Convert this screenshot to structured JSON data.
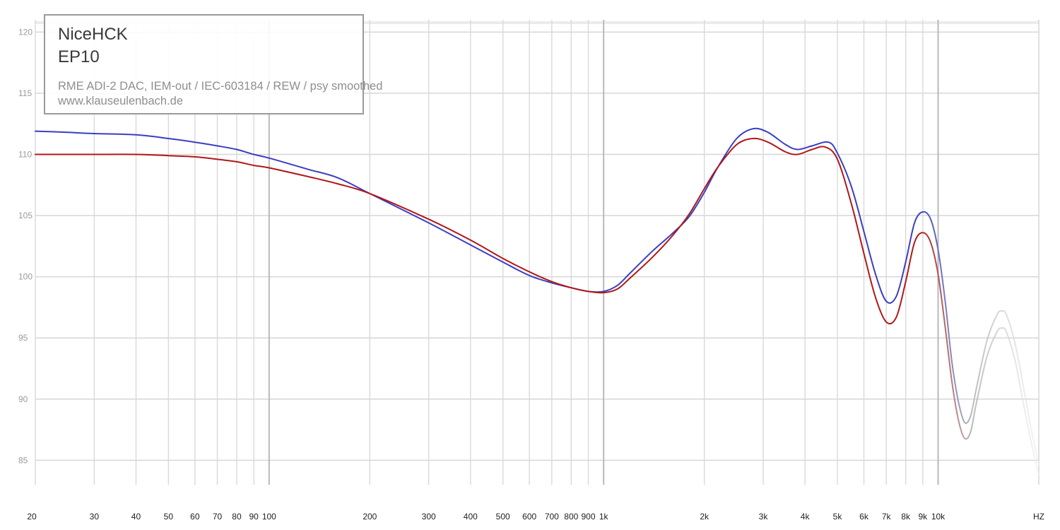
{
  "legend": {
    "brand": "NiceHCK",
    "model": "EP10",
    "setup": "RME ADI-2 DAC, IEM-out / IEC-603184 / REW / psy smoothed",
    "website": "www.klauseulenbach.de"
  },
  "chart_data": {
    "type": "line",
    "title": "",
    "xlabel": "",
    "ylabel": "",
    "x_scale": "log",
    "xlim": [
      20,
      20000
    ],
    "ylim": [
      83,
      121
    ],
    "grid": true,
    "y_ticks": [
      85,
      90,
      95,
      100,
      105,
      110,
      115,
      120
    ],
    "x_ticks": [
      {
        "value": 20,
        "label": "20"
      },
      {
        "value": 30,
        "label": "30"
      },
      {
        "value": 40,
        "label": "40"
      },
      {
        "value": 50,
        "label": "50"
      },
      {
        "value": 60,
        "label": "60"
      },
      {
        "value": 70,
        "label": "70"
      },
      {
        "value": 80,
        "label": "80"
      },
      {
        "value": 90,
        "label": "90"
      },
      {
        "value": 100,
        "label": "100"
      },
      {
        "value": 200,
        "label": "200"
      },
      {
        "value": 300,
        "label": "300"
      },
      {
        "value": 400,
        "label": "400"
      },
      {
        "value": 500,
        "label": "500"
      },
      {
        "value": 600,
        "label": "600"
      },
      {
        "value": 700,
        "label": "700"
      },
      {
        "value": 800,
        "label": "800"
      },
      {
        "value": 900,
        "label": "900"
      },
      {
        "value": 1000,
        "label": "1k"
      },
      {
        "value": 2000,
        "label": "2k"
      },
      {
        "value": 3000,
        "label": "3k"
      },
      {
        "value": 4000,
        "label": "4k"
      },
      {
        "value": 5000,
        "label": "5k"
      },
      {
        "value": 6000,
        "label": "6k"
      },
      {
        "value": 7000,
        "label": "7k"
      },
      {
        "value": 8000,
        "label": "8k"
      },
      {
        "value": 9000,
        "label": "9k"
      },
      {
        "value": 10000,
        "label": "10k"
      },
      {
        "value": 20000,
        "label": "HZ"
      }
    ],
    "series": [
      {
        "color": "#3a3fc0",
        "points": [
          [
            20,
            111.9
          ],
          [
            25,
            111.8
          ],
          [
            30,
            111.7
          ],
          [
            40,
            111.6
          ],
          [
            50,
            111.3
          ],
          [
            60,
            111.0
          ],
          [
            70,
            110.7
          ],
          [
            80,
            110.4
          ],
          [
            90,
            110.0
          ],
          [
            100,
            109.7
          ],
          [
            130,
            108.8
          ],
          [
            160,
            108.1
          ],
          [
            200,
            106.8
          ],
          [
            300,
            104.4
          ],
          [
            400,
            102.6
          ],
          [
            500,
            101.2
          ],
          [
            600,
            100.1
          ],
          [
            700,
            99.5
          ],
          [
            800,
            99.1
          ],
          [
            900,
            98.8
          ],
          [
            1000,
            98.8
          ],
          [
            1100,
            99.3
          ],
          [
            1200,
            100.3
          ],
          [
            1400,
            102.1
          ],
          [
            1600,
            103.5
          ],
          [
            1800,
            104.9
          ],
          [
            2000,
            106.9
          ],
          [
            2200,
            109.0
          ],
          [
            2500,
            111.3
          ],
          [
            2800,
            112.1
          ],
          [
            3100,
            111.8
          ],
          [
            3500,
            110.8
          ],
          [
            3800,
            110.4
          ],
          [
            4200,
            110.7
          ],
          [
            4700,
            111.0
          ],
          [
            5000,
            110.1
          ],
          [
            5500,
            107.4
          ],
          [
            6000,
            103.7
          ],
          [
            6500,
            100.2
          ],
          [
            7000,
            98.0
          ],
          [
            7500,
            98.4
          ],
          [
            8000,
            101.2
          ],
          [
            8500,
            104.4
          ],
          [
            9000,
            105.3
          ],
          [
            9500,
            104.7
          ],
          [
            10000,
            102.2
          ],
          [
            10500,
            98.0
          ],
          [
            11000,
            93.0
          ],
          [
            11500,
            89.8
          ],
          [
            12000,
            88.1
          ],
          [
            12500,
            88.6
          ],
          [
            13000,
            90.8
          ],
          [
            14000,
            94.8
          ],
          [
            15000,
            96.9
          ],
          [
            15500,
            97.2
          ],
          [
            16000,
            96.9
          ],
          [
            17000,
            94.5
          ],
          [
            18000,
            91.0
          ],
          [
            19000,
            87.5
          ],
          [
            20000,
            84.6
          ]
        ]
      },
      {
        "color": "#b01818",
        "points": [
          [
            20,
            110.0
          ],
          [
            25,
            110.0
          ],
          [
            30,
            110.0
          ],
          [
            40,
            110.0
          ],
          [
            50,
            109.9
          ],
          [
            60,
            109.8
          ],
          [
            70,
            109.6
          ],
          [
            80,
            109.4
          ],
          [
            90,
            109.1
          ],
          [
            100,
            108.9
          ],
          [
            130,
            108.2
          ],
          [
            160,
            107.6
          ],
          [
            200,
            106.8
          ],
          [
            300,
            104.7
          ],
          [
            400,
            103.0
          ],
          [
            500,
            101.5
          ],
          [
            600,
            100.4
          ],
          [
            700,
            99.6
          ],
          [
            800,
            99.1
          ],
          [
            900,
            98.8
          ],
          [
            1000,
            98.7
          ],
          [
            1100,
            99.0
          ],
          [
            1200,
            99.9
          ],
          [
            1400,
            101.6
          ],
          [
            1600,
            103.3
          ],
          [
            1800,
            105.1
          ],
          [
            2000,
            107.2
          ],
          [
            2200,
            109.0
          ],
          [
            2500,
            110.8
          ],
          [
            2800,
            111.3
          ],
          [
            3100,
            111.0
          ],
          [
            3500,
            110.2
          ],
          [
            3800,
            110.0
          ],
          [
            4200,
            110.4
          ],
          [
            4600,
            110.6
          ],
          [
            5000,
            109.6
          ],
          [
            5500,
            106.0
          ],
          [
            6000,
            101.9
          ],
          [
            6500,
            98.3
          ],
          [
            7000,
            96.3
          ],
          [
            7500,
            96.7
          ],
          [
            8000,
            99.6
          ],
          [
            8500,
            102.8
          ],
          [
            9000,
            103.6
          ],
          [
            9500,
            102.8
          ],
          [
            10000,
            100.2
          ],
          [
            10500,
            95.9
          ],
          [
            11000,
            91.4
          ],
          [
            11500,
            88.3
          ],
          [
            12000,
            86.8
          ],
          [
            12500,
            87.3
          ],
          [
            13000,
            89.6
          ],
          [
            14000,
            93.5
          ],
          [
            15000,
            95.5
          ],
          [
            15500,
            95.8
          ],
          [
            16000,
            95.5
          ],
          [
            17000,
            93.1
          ],
          [
            18000,
            89.6
          ],
          [
            19000,
            86.4
          ],
          [
            20000,
            83.8
          ]
        ]
      }
    ]
  }
}
